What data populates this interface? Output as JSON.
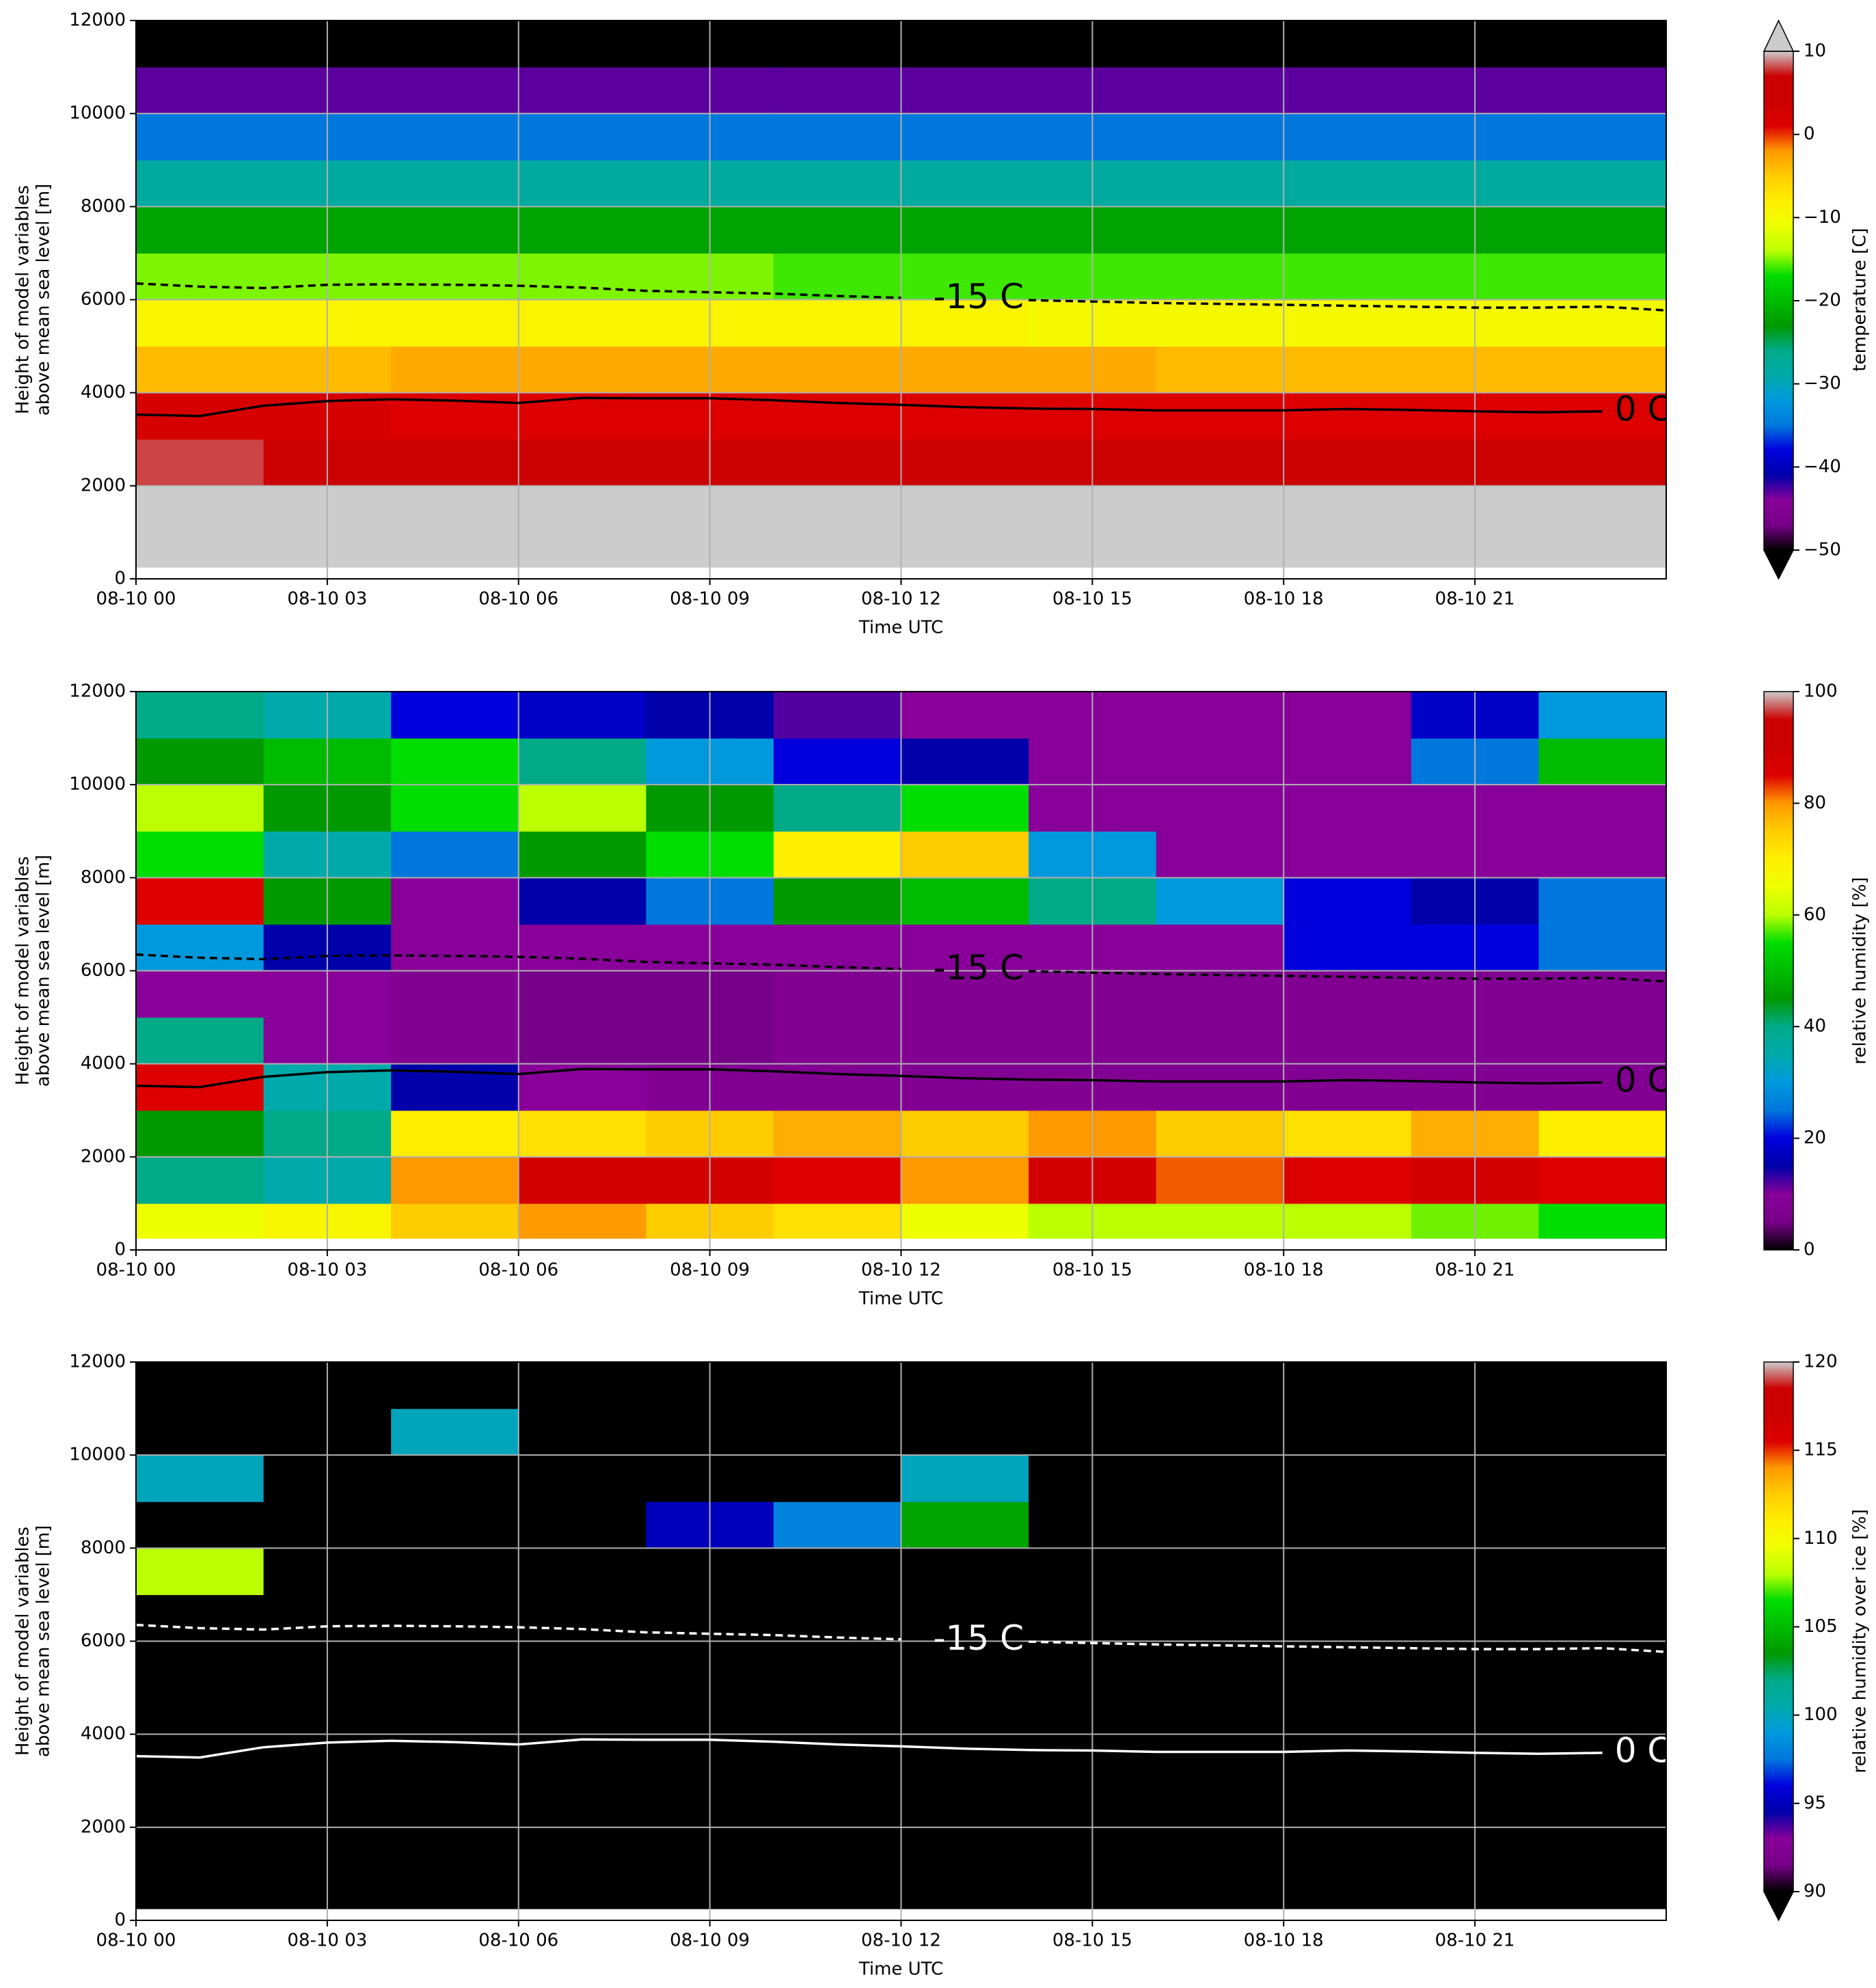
{
  "chart_data": [
    {
      "type": "heatmap",
      "cmap": "nipy_spectral",
      "grid": true,
      "xlabel": "Time UTC",
      "ylabel": [
        "Height of model variables",
        "above mean sea level [m]"
      ],
      "xlim": [
        "08-10 00",
        "08-11 00"
      ],
      "xticks": [
        "08-10 00",
        "08-10 03",
        "08-10 06",
        "08-10 09",
        "08-10 12",
        "08-10 15",
        "08-10 18",
        "08-10 21"
      ],
      "ylim": [
        0,
        12000
      ],
      "yticks": [
        0,
        2000,
        4000,
        6000,
        8000,
        10000,
        12000
      ],
      "clim": [
        -50,
        10
      ],
      "cticks": [
        {
          "value": -50,
          "label": "−50"
        },
        {
          "value": -40,
          "label": "−40"
        },
        {
          "value": -30,
          "label": "−30"
        },
        {
          "value": -20,
          "label": "−20"
        },
        {
          "value": -10,
          "label": "−10"
        },
        0,
        10
      ],
      "clabel": "temperature [C]",
      "extend": "both",
      "over_color": "#cccccc",
      "under_color": "#000000",
      "x": [
        "08-10 00",
        "08-10 02",
        "08-10 04",
        "08-10 06",
        "08-10 08",
        "08-10 10",
        "08-10 12",
        "08-10 14",
        "08-10 16",
        "08-10 18",
        "08-10 20",
        "08-10 22"
      ],
      "y": [
        250,
        1000,
        2000,
        3000,
        4000,
        5000,
        6000,
        7000,
        8000,
        9000,
        10000,
        11000
      ],
      "values": [
        [
          15,
          15,
          15,
          15,
          15,
          15,
          15,
          15,
          15,
          15,
          15,
          15
        ],
        [
          13,
          12,
          11,
          11,
          10,
          10,
          10,
          10,
          10,
          10,
          10,
          10
        ],
        [
          8,
          7,
          7,
          6,
          6,
          6,
          6,
          6,
          6,
          6,
          6,
          6
        ],
        [
          2,
          2,
          1,
          1,
          1,
          1,
          1,
          1,
          1,
          1,
          1,
          1
        ],
        [
          -4,
          -4,
          -3,
          -3,
          -3,
          -3,
          -3,
          -3,
          -4,
          -4,
          -4,
          -4
        ],
        [
          -9,
          -9,
          -9,
          -9,
          -9,
          -9,
          -9,
          -10,
          -10,
          -10,
          -10,
          -10
        ],
        [
          -15,
          -15,
          -15,
          -15,
          -15,
          -16,
          -16,
          -16,
          -16,
          -16,
          -16,
          -16
        ],
        [
          -22,
          -22,
          -22,
          -22,
          -22,
          -22,
          -22,
          -22,
          -22,
          -22,
          -22,
          -22
        ],
        [
          -28,
          -28,
          -28,
          -28,
          -28,
          -28,
          -28,
          -28,
          -28,
          -28,
          -28,
          -28
        ],
        [
          -35,
          -35,
          -35,
          -35,
          -35,
          -35,
          -35,
          -35,
          -35,
          -35,
          -35,
          -35
        ],
        [
          -43,
          -43,
          -43,
          -43,
          -43,
          -43,
          -43,
          -43,
          -43,
          -43,
          -43,
          -43
        ],
        [
          -53,
          -53,
          -53,
          -53,
          -53,
          -53,
          -53,
          -53,
          -53,
          -53,
          -53,
          -53
        ]
      ],
      "contours": [
        {
          "label": "-15 C",
          "style": "dashed",
          "color": "#000000",
          "x": [
            "08-10 00",
            "08-10 01",
            "08-10 02",
            "08-10 03",
            "08-10 04",
            "08-10 05",
            "08-10 06",
            "08-10 07",
            "08-10 08",
            "08-10 09",
            "08-10 10",
            "08-10 11",
            "08-10 12",
            "08-10 13",
            "08-10 14",
            "08-10 15",
            "08-10 16",
            "08-10 17",
            "08-10 18",
            "08-10 19",
            "08-10 20",
            "08-10 21",
            "08-10 22",
            "08-10 23",
            "08-11 00"
          ],
          "values": [
            6350,
            6280,
            6250,
            6320,
            6330,
            6320,
            6300,
            6260,
            6190,
            6160,
            6130,
            6080,
            6040,
            null,
            5990,
            5960,
            5930,
            5910,
            5890,
            5870,
            5850,
            5830,
            5830,
            5850,
            5770
          ]
        },
        {
          "label": "0 C",
          "style": "solid",
          "color": "#000000",
          "x": [
            "08-10 00",
            "08-10 01",
            "08-10 02",
            "08-10 03",
            "08-10 04",
            "08-10 05",
            "08-10 06",
            "08-10 07",
            "08-10 08",
            "08-10 09",
            "08-10 10",
            "08-10 11",
            "08-10 12",
            "08-10 13",
            "08-10 14",
            "08-10 15",
            "08-10 16",
            "08-10 17",
            "08-10 18",
            "08-10 19",
            "08-10 20",
            "08-10 21",
            "08-10 22",
            "08-10 23"
          ],
          "values": [
            3530,
            3500,
            3720,
            3820,
            3860,
            3830,
            3780,
            3890,
            3880,
            3880,
            3840,
            3780,
            3740,
            3690,
            3660,
            3650,
            3620,
            3620,
            3620,
            3650,
            3630,
            3600,
            3580,
            3600
          ]
        }
      ]
    },
    {
      "type": "heatmap",
      "cmap": "nipy_spectral",
      "grid": true,
      "xlabel": "Time UTC",
      "ylabel": [
        "Height of model variables",
        "above mean sea level [m]"
      ],
      "xlim": [
        "08-10 00",
        "08-11 00"
      ],
      "xticks": [
        "08-10 00",
        "08-10 03",
        "08-10 06",
        "08-10 09",
        "08-10 12",
        "08-10 15",
        "08-10 18",
        "08-10 21"
      ],
      "ylim": [
        0,
        12000
      ],
      "yticks": [
        0,
        2000,
        4000,
        6000,
        8000,
        10000,
        12000
      ],
      "clim": [
        0,
        100
      ],
      "cticks": [
        0,
        20,
        40,
        60,
        80,
        100
      ],
      "clabel": "relative humidity [%]",
      "extend": "neither",
      "x": [
        "08-10 00",
        "08-10 02",
        "08-10 04",
        "08-10 06",
        "08-10 08",
        "08-10 10",
        "08-10 12",
        "08-10 14",
        "08-10 16",
        "08-10 18",
        "08-10 20",
        "08-10 22"
      ],
      "y": [
        250,
        1000,
        2000,
        3000,
        4000,
        5000,
        6000,
        7000,
        8000,
        9000,
        10000,
        11000
      ],
      "values": [
        [
          65,
          68,
          75,
          80,
          75,
          72,
          65,
          60,
          60,
          60,
          58,
          55
        ],
        [
          40,
          35,
          80,
          88,
          88,
          85,
          80,
          88,
          82,
          85,
          88,
          85
        ],
        [
          45,
          40,
          70,
          72,
          75,
          78,
          75,
          80,
          75,
          72,
          78,
          70
        ],
        [
          85,
          35,
          15,
          10,
          8,
          8,
          8,
          8,
          8,
          8,
          8,
          8
        ],
        [
          40,
          10,
          8,
          5,
          5,
          8,
          8,
          8,
          8,
          8,
          8,
          8
        ],
        [
          10,
          10,
          8,
          5,
          5,
          8,
          8,
          8,
          8,
          8,
          8,
          8
        ],
        [
          30,
          15,
          10,
          10,
          10,
          10,
          10,
          10,
          10,
          20,
          20,
          25
        ],
        [
          85,
          45,
          10,
          15,
          25,
          45,
          50,
          40,
          30,
          20,
          15,
          25
        ],
        [
          55,
          35,
          25,
          45,
          55,
          70,
          75,
          30,
          10,
          10,
          10,
          10
        ],
        [
          60,
          45,
          55,
          60,
          45,
          40,
          55,
          10,
          10,
          10,
          10,
          10
        ],
        [
          45,
          50,
          55,
          40,
          30,
          20,
          15,
          10,
          10,
          10,
          25,
          50
        ],
        [
          40,
          35,
          20,
          18,
          15,
          12,
          10,
          10,
          10,
          10,
          18,
          30
        ]
      ],
      "contours": [
        {
          "label": "-15 C",
          "style": "dashed",
          "color": "#000000",
          "x": [
            "08-10 00",
            "08-10 01",
            "08-10 02",
            "08-10 03",
            "08-10 04",
            "08-10 05",
            "08-10 06",
            "08-10 07",
            "08-10 08",
            "08-10 09",
            "08-10 10",
            "08-10 11",
            "08-10 12",
            "08-10 13",
            "08-10 14",
            "08-10 15",
            "08-10 16",
            "08-10 17",
            "08-10 18",
            "08-10 19",
            "08-10 20",
            "08-10 21",
            "08-10 22",
            "08-10 23",
            "08-11 00"
          ],
          "values": [
            6350,
            6280,
            6250,
            6320,
            6330,
            6320,
            6300,
            6260,
            6190,
            6160,
            6130,
            6080,
            6040,
            null,
            5990,
            5960,
            5930,
            5910,
            5890,
            5870,
            5850,
            5830,
            5830,
            5850,
            5770
          ]
        },
        {
          "label": "0 C",
          "style": "solid",
          "color": "#000000",
          "x": [
            "08-10 00",
            "08-10 01",
            "08-10 02",
            "08-10 03",
            "08-10 04",
            "08-10 05",
            "08-10 06",
            "08-10 07",
            "08-10 08",
            "08-10 09",
            "08-10 10",
            "08-10 11",
            "08-10 12",
            "08-10 13",
            "08-10 14",
            "08-10 15",
            "08-10 16",
            "08-10 17",
            "08-10 18",
            "08-10 19",
            "08-10 20",
            "08-10 21",
            "08-10 22",
            "08-10 23"
          ],
          "values": [
            3530,
            3500,
            3720,
            3820,
            3860,
            3830,
            3780,
            3890,
            3880,
            3880,
            3840,
            3780,
            3740,
            3690,
            3660,
            3650,
            3620,
            3620,
            3620,
            3650,
            3630,
            3600,
            3580,
            3600
          ]
        }
      ]
    },
    {
      "type": "heatmap",
      "cmap": "nipy_spectral",
      "grid": true,
      "xlabel": "Time UTC",
      "ylabel": [
        "Height of model variables",
        "above mean sea level [m]"
      ],
      "xlim": [
        "08-10 00",
        "08-11 00"
      ],
      "xticks": [
        "08-10 00",
        "08-10 03",
        "08-10 06",
        "08-10 09",
        "08-10 12",
        "08-10 15",
        "08-10 18",
        "08-10 21"
      ],
      "ylim": [
        0,
        12000
      ],
      "yticks": [
        0,
        2000,
        4000,
        6000,
        8000,
        10000,
        12000
      ],
      "clim": [
        90,
        120
      ],
      "cticks": [
        90,
        95,
        100,
        105,
        110,
        115,
        120
      ],
      "clabel": "relative humidity over ice [%]",
      "extend": "min",
      "under_color": "#000000",
      "x": [
        "08-10 00",
        "08-10 02",
        "08-10 04",
        "08-10 06",
        "08-10 08",
        "08-10 10",
        "08-10 12",
        "08-10 14",
        "08-10 16",
        "08-10 18",
        "08-10 20",
        "08-10 22"
      ],
      "y": [
        250,
        1000,
        2000,
        3000,
        4000,
        5000,
        6000,
        7000,
        8000,
        9000,
        10000,
        11000
      ],
      "values": [
        [
          80,
          80,
          80,
          80,
          80,
          80,
          80,
          80,
          80,
          80,
          80,
          80
        ],
        [
          80,
          80,
          80,
          80,
          80,
          80,
          80,
          80,
          80,
          80,
          80,
          80
        ],
        [
          80,
          80,
          80,
          80,
          80,
          80,
          80,
          80,
          80,
          80,
          80,
          80
        ],
        [
          80,
          80,
          80,
          80,
          80,
          80,
          80,
          80,
          80,
          80,
          80,
          80
        ],
        [
          80,
          80,
          80,
          80,
          80,
          80,
          80,
          80,
          80,
          80,
          80,
          80
        ],
        [
          80,
          80,
          80,
          80,
          80,
          80,
          80,
          80,
          80,
          80,
          80,
          80
        ],
        [
          80,
          80,
          80,
          80,
          80,
          80,
          80,
          80,
          80,
          80,
          80,
          80
        ],
        [
          108,
          80,
          80,
          80,
          80,
          80,
          80,
          80,
          80,
          80,
          80,
          80
        ],
        [
          80,
          80,
          80,
          80,
          95,
          98,
          104,
          80,
          80,
          80,
          80,
          80
        ],
        [
          100,
          80,
          80,
          80,
          80,
          80,
          100,
          80,
          80,
          80,
          80,
          80
        ],
        [
          80,
          80,
          100,
          80,
          80,
          80,
          80,
          80,
          80,
          80,
          80,
          80
        ],
        [
          80,
          80,
          80,
          80,
          80,
          80,
          80,
          80,
          80,
          80,
          80,
          80
        ]
      ],
      "contours": [
        {
          "label": "-15 C",
          "style": "dashed",
          "color": "#ffffff",
          "x": [
            "08-10 00",
            "08-10 01",
            "08-10 02",
            "08-10 03",
            "08-10 04",
            "08-10 05",
            "08-10 06",
            "08-10 07",
            "08-10 08",
            "08-10 09",
            "08-10 10",
            "08-10 11",
            "08-10 12",
            "08-10 13",
            "08-10 14",
            "08-10 15",
            "08-10 16",
            "08-10 17",
            "08-10 18",
            "08-10 19",
            "08-10 20",
            "08-10 21",
            "08-10 22",
            "08-10 23",
            "08-11 00"
          ],
          "values": [
            6350,
            6280,
            6250,
            6320,
            6330,
            6320,
            6300,
            6260,
            6190,
            6160,
            6130,
            6080,
            6040,
            null,
            5990,
            5960,
            5930,
            5910,
            5890,
            5870,
            5850,
            5830,
            5830,
            5850,
            5770
          ]
        },
        {
          "label": "0 C",
          "style": "solid",
          "color": "#ffffff",
          "x": [
            "08-10 00",
            "08-10 01",
            "08-10 02",
            "08-10 03",
            "08-10 04",
            "08-10 05",
            "08-10 06",
            "08-10 07",
            "08-10 08",
            "08-10 09",
            "08-10 10",
            "08-10 11",
            "08-10 12",
            "08-10 13",
            "08-10 14",
            "08-10 15",
            "08-10 16",
            "08-10 17",
            "08-10 18",
            "08-10 19",
            "08-10 20",
            "08-10 21",
            "08-10 22",
            "08-10 23"
          ],
          "values": [
            3530,
            3500,
            3720,
            3820,
            3860,
            3830,
            3780,
            3890,
            3880,
            3880,
            3840,
            3780,
            3740,
            3690,
            3660,
            3650,
            3620,
            3620,
            3620,
            3650,
            3630,
            3600,
            3580,
            3600
          ]
        }
      ]
    }
  ]
}
